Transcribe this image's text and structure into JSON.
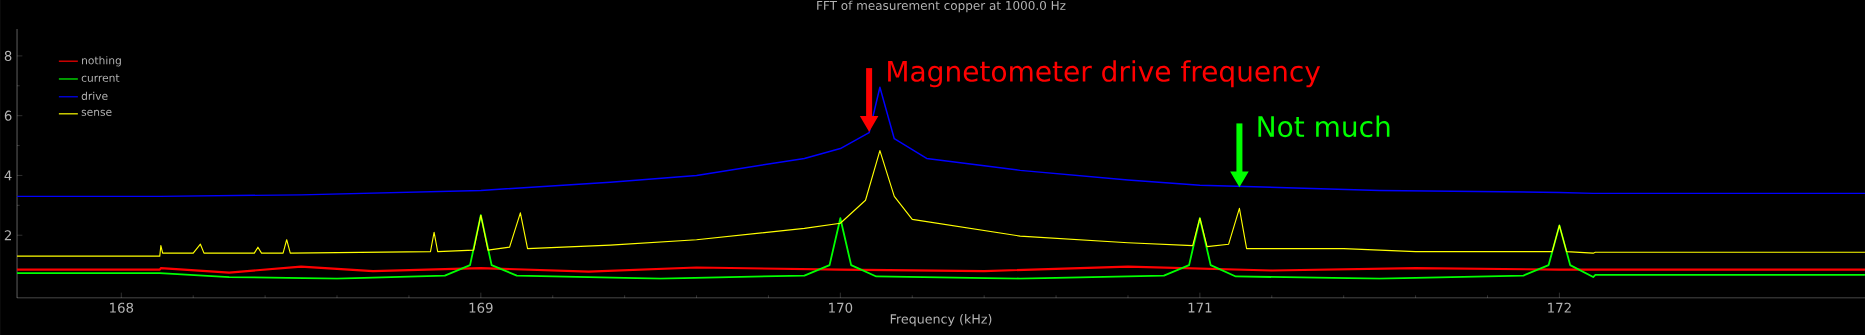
{
  "chart_data": {
    "type": "line",
    "title": "FFT of measurement copper at 1000.0 Hz",
    "xlabel": "Frequency (kHz)",
    "xlim": [
      167.71,
      172.85
    ],
    "ylim": [
      -0.1,
      8.9
    ],
    "xticks": [
      168,
      169,
      170,
      171,
      172
    ],
    "yticks": [
      2,
      4,
      6,
      8
    ],
    "legend": "top left",
    "series": [
      {
        "name": "nothing",
        "color": "#ff0000",
        "x": [
          167.71,
          168.107,
          168.11,
          168.3,
          168.5,
          168.7,
          169.0,
          169.3,
          169.6,
          170.0,
          170.4,
          170.8,
          171.2,
          171.6,
          172.0,
          172.09,
          172.094,
          172.85
        ],
        "values": [
          0.85,
          0.85,
          0.9,
          0.75,
          0.95,
          0.8,
          0.9,
          0.78,
          0.92,
          0.85,
          0.8,
          0.95,
          0.82,
          0.9,
          0.85,
          0.85,
          0.85,
          0.85
        ]
      },
      {
        "name": "current",
        "color": "#00ff00",
        "x": [
          167.71,
          168.107,
          168.3,
          168.6,
          168.9,
          168.97,
          169.0,
          169.03,
          169.1,
          169.5,
          169.9,
          169.97,
          170.0,
          170.03,
          170.1,
          170.5,
          170.9,
          170.97,
          171.0,
          171.03,
          171.1,
          171.5,
          171.9,
          171.97,
          172.0,
          172.03,
          172.094,
          172.1,
          172.85
        ],
        "values": [
          0.73,
          0.73,
          0.6,
          0.55,
          0.65,
          1.0,
          2.67,
          1.0,
          0.65,
          0.55,
          0.65,
          1.0,
          2.57,
          1.0,
          0.62,
          0.55,
          0.65,
          1.0,
          2.57,
          1.0,
          0.62,
          0.55,
          0.65,
          1.0,
          2.33,
          1.0,
          0.6,
          0.67,
          0.67
        ]
      },
      {
        "name": "drive",
        "color": "#0000ff",
        "x": [
          167.71,
          168.107,
          168.5,
          169.0,
          169.36,
          169.6,
          169.9,
          170.0,
          170.08,
          170.11,
          170.15,
          170.24,
          170.5,
          170.8,
          171.0,
          171.5,
          172.0,
          172.094,
          172.85
        ],
        "values": [
          3.3,
          3.3,
          3.35,
          3.5,
          3.77,
          4.0,
          4.57,
          4.9,
          5.43,
          6.95,
          5.23,
          4.57,
          4.17,
          3.85,
          3.67,
          3.5,
          3.43,
          3.4,
          3.4
        ]
      },
      {
        "name": "sense",
        "color": "#ffff00",
        "x": [
          167.71,
          168.107,
          168.11,
          168.115,
          168.2,
          168.22,
          168.23,
          168.37,
          168.38,
          168.39,
          168.45,
          168.46,
          168.47,
          168.86,
          168.87,
          168.88,
          168.98,
          169.0,
          169.02,
          169.08,
          169.11,
          169.13,
          169.36,
          169.6,
          169.9,
          170.0,
          170.07,
          170.11,
          170.15,
          170.2,
          170.5,
          170.8,
          170.98,
          171.0,
          171.02,
          171.08,
          171.11,
          171.13,
          171.4,
          171.6,
          171.98,
          172.0,
          172.02,
          172.094,
          172.1,
          172.85
        ],
        "values": [
          1.3,
          1.3,
          1.65,
          1.4,
          1.4,
          1.7,
          1.4,
          1.4,
          1.6,
          1.4,
          1.4,
          1.85,
          1.4,
          1.45,
          2.1,
          1.45,
          1.5,
          2.67,
          1.5,
          1.6,
          2.75,
          1.55,
          1.67,
          1.85,
          2.23,
          2.4,
          3.17,
          4.83,
          3.3,
          2.53,
          1.97,
          1.75,
          1.65,
          2.57,
          1.62,
          1.7,
          2.9,
          1.55,
          1.55,
          1.45,
          1.45,
          2.33,
          1.45,
          1.4,
          1.43,
          1.43
        ]
      }
    ],
    "annotations": [
      {
        "text": "Magnetometer drive frequency",
        "x": 170.08,
        "y": 5.45
      },
      {
        "text": "Not much",
        "x": 171.11,
        "y": 3.6
      }
    ]
  }
}
